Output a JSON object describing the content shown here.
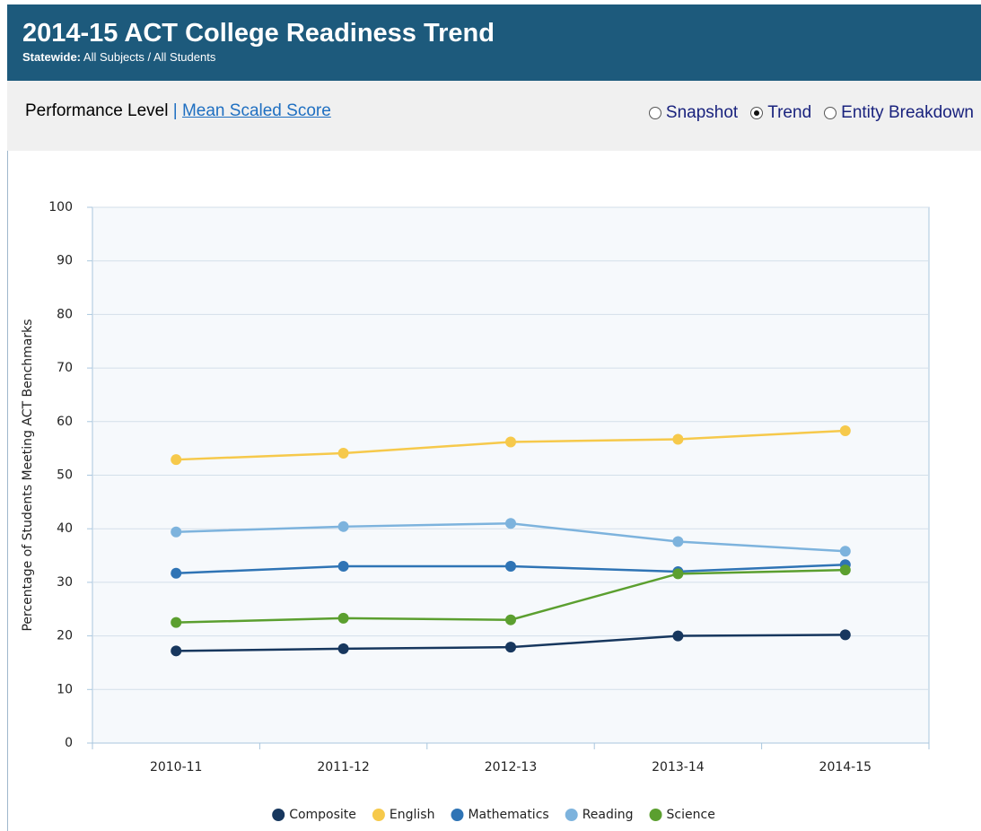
{
  "header": {
    "title": "2014-15 ACT College Readiness Trend",
    "subtitle_label": "Statewide:",
    "subtitle": "All Subjects / All Students"
  },
  "toolbar": {
    "current_view": "Performance Level",
    "separator": "|",
    "other_view": "Mean Scaled Score",
    "options": [
      "Snapshot",
      "Trend",
      "Entity Breakdown"
    ],
    "selected": "Trend"
  },
  "chart_data": {
    "type": "line",
    "y_label": "Percentage of Students Meeting ACT Benchmarks",
    "categories": [
      "2010-11",
      "2011-12",
      "2012-13",
      "2013-14",
      "2014-15"
    ],
    "series": [
      {
        "name": "Composite",
        "color": "#17375e",
        "values": [
          17.2,
          17.6,
          17.9,
          20.0,
          20.2
        ]
      },
      {
        "name": "English",
        "color": "#f6c94b",
        "values": [
          52.9,
          54.1,
          56.2,
          56.7,
          58.3
        ]
      },
      {
        "name": "Mathematics",
        "color": "#2f74b5",
        "values": [
          31.7,
          33.0,
          33.0,
          32.0,
          33.3
        ]
      },
      {
        "name": "Reading",
        "color": "#7db3dd",
        "values": [
          39.4,
          40.4,
          41.0,
          37.6,
          35.8
        ]
      },
      {
        "name": "Science",
        "color": "#5b9f2f",
        "values": [
          22.5,
          23.3,
          23.0,
          31.6,
          32.3
        ]
      }
    ],
    "ylim": [
      0,
      100
    ],
    "yticks": [
      0,
      10,
      20,
      30,
      40,
      50,
      60,
      70,
      80,
      90,
      100
    ],
    "grid": true,
    "legend": "bottom"
  }
}
